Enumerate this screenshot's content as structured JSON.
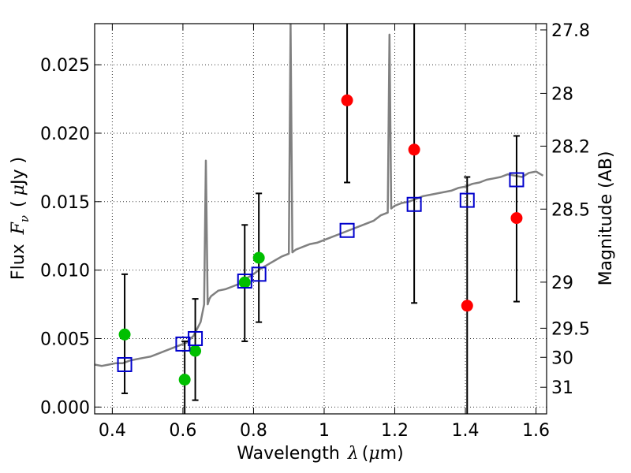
{
  "chart_data": {
    "type": "scatter",
    "xlabel": "Wavelength",
    "xlabel_symbol": "λ",
    "xlabel_unit_prefix": "(",
    "xlabel_unit_mu": "μ",
    "xlabel_unit_rest": "m)",
    "ylabel": "Flux",
    "ylabel_symbol": "F",
    "ylabel_symbol_sub": "ν",
    "ylabel_unit_prefix": "(",
    "ylabel_unit_mu": "μ",
    "ylabel_unit_rest": "Jy )",
    "y2label": "Magnitude (AB)",
    "xlim": [
      0.35,
      1.63
    ],
    "ylim": [
      -0.0005,
      0.028
    ],
    "grid": true,
    "x_ticks": [
      0.4,
      0.6,
      0.8,
      1.0,
      1.2,
      1.4,
      1.6
    ],
    "x_tick_labels": [
      "0.4",
      "0.6",
      "0.8",
      "1",
      "1.2",
      "1.4",
      "1.6"
    ],
    "y_ticks": [
      0.0,
      0.005,
      0.01,
      0.015,
      0.02,
      0.025
    ],
    "y_tick_labels": [
      "0.000",
      "0.005",
      "0.010",
      "0.015",
      "0.020",
      "0.025"
    ],
    "y2_ticks": [
      {
        "label": "27.8",
        "mag": 27.8
      },
      {
        "label": "28",
        "mag": 28.0
      },
      {
        "label": "28.2",
        "mag": 28.2
      },
      {
        "label": "28.5",
        "mag": 28.5
      },
      {
        "label": "29",
        "mag": 29.0
      },
      {
        "label": "29.5",
        "mag": 29.5
      },
      {
        "label": "30",
        "mag": 30.0
      },
      {
        "label": "31",
        "mag": 31.0
      }
    ],
    "series": [
      {
        "kind": "line",
        "color": "#808080",
        "x": [
          0.35,
          0.37,
          0.39,
          0.41,
          0.43,
          0.45,
          0.47,
          0.49,
          0.51,
          0.53,
          0.55,
          0.57,
          0.59,
          0.61,
          0.63,
          0.65,
          0.66,
          0.665,
          0.67,
          0.675,
          0.68,
          0.7,
          0.72,
          0.74,
          0.76,
          0.78,
          0.8,
          0.82,
          0.84,
          0.86,
          0.88,
          0.9,
          0.905,
          0.91,
          0.915,
          0.92,
          0.94,
          0.96,
          0.98,
          1.0,
          1.02,
          1.04,
          1.06,
          1.08,
          1.1,
          1.12,
          1.14,
          1.16,
          1.18,
          1.185,
          1.19,
          1.195,
          1.2,
          1.22,
          1.24,
          1.26,
          1.28,
          1.3,
          1.32,
          1.34,
          1.36,
          1.38,
          1.4,
          1.42,
          1.44,
          1.46,
          1.48,
          1.5,
          1.52,
          1.54,
          1.56,
          1.58,
          1.6,
          1.62
        ],
        "y": [
          0.0031,
          0.003,
          0.0031,
          0.0032,
          0.0032,
          0.0034,
          0.0035,
          0.0036,
          0.0037,
          0.0039,
          0.0041,
          0.0043,
          0.0045,
          0.0047,
          0.0052,
          0.0062,
          0.0075,
          0.018,
          0.0075,
          0.0079,
          0.0081,
          0.0085,
          0.0086,
          0.0088,
          0.009,
          0.0094,
          0.0097,
          0.0101,
          0.0104,
          0.0107,
          0.011,
          0.0112,
          0.028,
          0.0113,
          0.0114,
          0.0115,
          0.0117,
          0.0119,
          0.012,
          0.0122,
          0.0124,
          0.0126,
          0.0128,
          0.013,
          0.0132,
          0.0134,
          0.0136,
          0.014,
          0.0142,
          0.0272,
          0.0145,
          0.0146,
          0.0147,
          0.0149,
          0.015,
          0.0152,
          0.0154,
          0.0155,
          0.0156,
          0.0157,
          0.0158,
          0.016,
          0.0161,
          0.0163,
          0.0164,
          0.0166,
          0.0167,
          0.0168,
          0.017,
          0.0169,
          0.0168,
          0.0171,
          0.0172,
          0.0169
        ]
      },
      {
        "kind": "errorbar",
        "color": "#000000",
        "points": [
          {
            "x": 0.435,
            "low": 0.001,
            "high": 0.0097
          },
          {
            "x": 0.605,
            "low": -0.0005,
            "high": 0.0048
          },
          {
            "x": 0.635,
            "low": 0.0005,
            "high": 0.0079
          },
          {
            "x": 0.775,
            "low": 0.0048,
            "high": 0.0133
          },
          {
            "x": 0.815,
            "low": 0.0062,
            "high": 0.0156
          },
          {
            "x": 1.065,
            "low": 0.0164,
            "high": 0.028
          },
          {
            "x": 1.255,
            "low": 0.0076,
            "high": 0.028
          },
          {
            "x": 1.405,
            "low": -0.0005,
            "high": 0.0168
          },
          {
            "x": 1.545,
            "low": 0.0077,
            "high": 0.0198
          }
        ]
      },
      {
        "kind": "markers",
        "marker": "circle",
        "color": "#00bf00",
        "x": [
          0.435,
          0.605,
          0.635,
          0.775,
          0.815
        ],
        "y": [
          0.0053,
          0.002,
          0.0041,
          0.0091,
          0.0109
        ]
      },
      {
        "kind": "markers",
        "marker": "circle",
        "color": "#ff0000",
        "x": [
          1.065,
          1.255,
          1.405,
          1.545
        ],
        "y": [
          0.0224,
          0.0188,
          0.0074,
          0.0138
        ]
      },
      {
        "kind": "markers",
        "marker": "open-square",
        "color": "#0000cc",
        "x": [
          0.435,
          0.6,
          0.635,
          0.775,
          0.815,
          1.065,
          1.255,
          1.405,
          1.545
        ],
        "y": [
          0.0031,
          0.0046,
          0.005,
          0.0092,
          0.0097,
          0.0129,
          0.0148,
          0.0151,
          0.0166
        ]
      }
    ]
  }
}
